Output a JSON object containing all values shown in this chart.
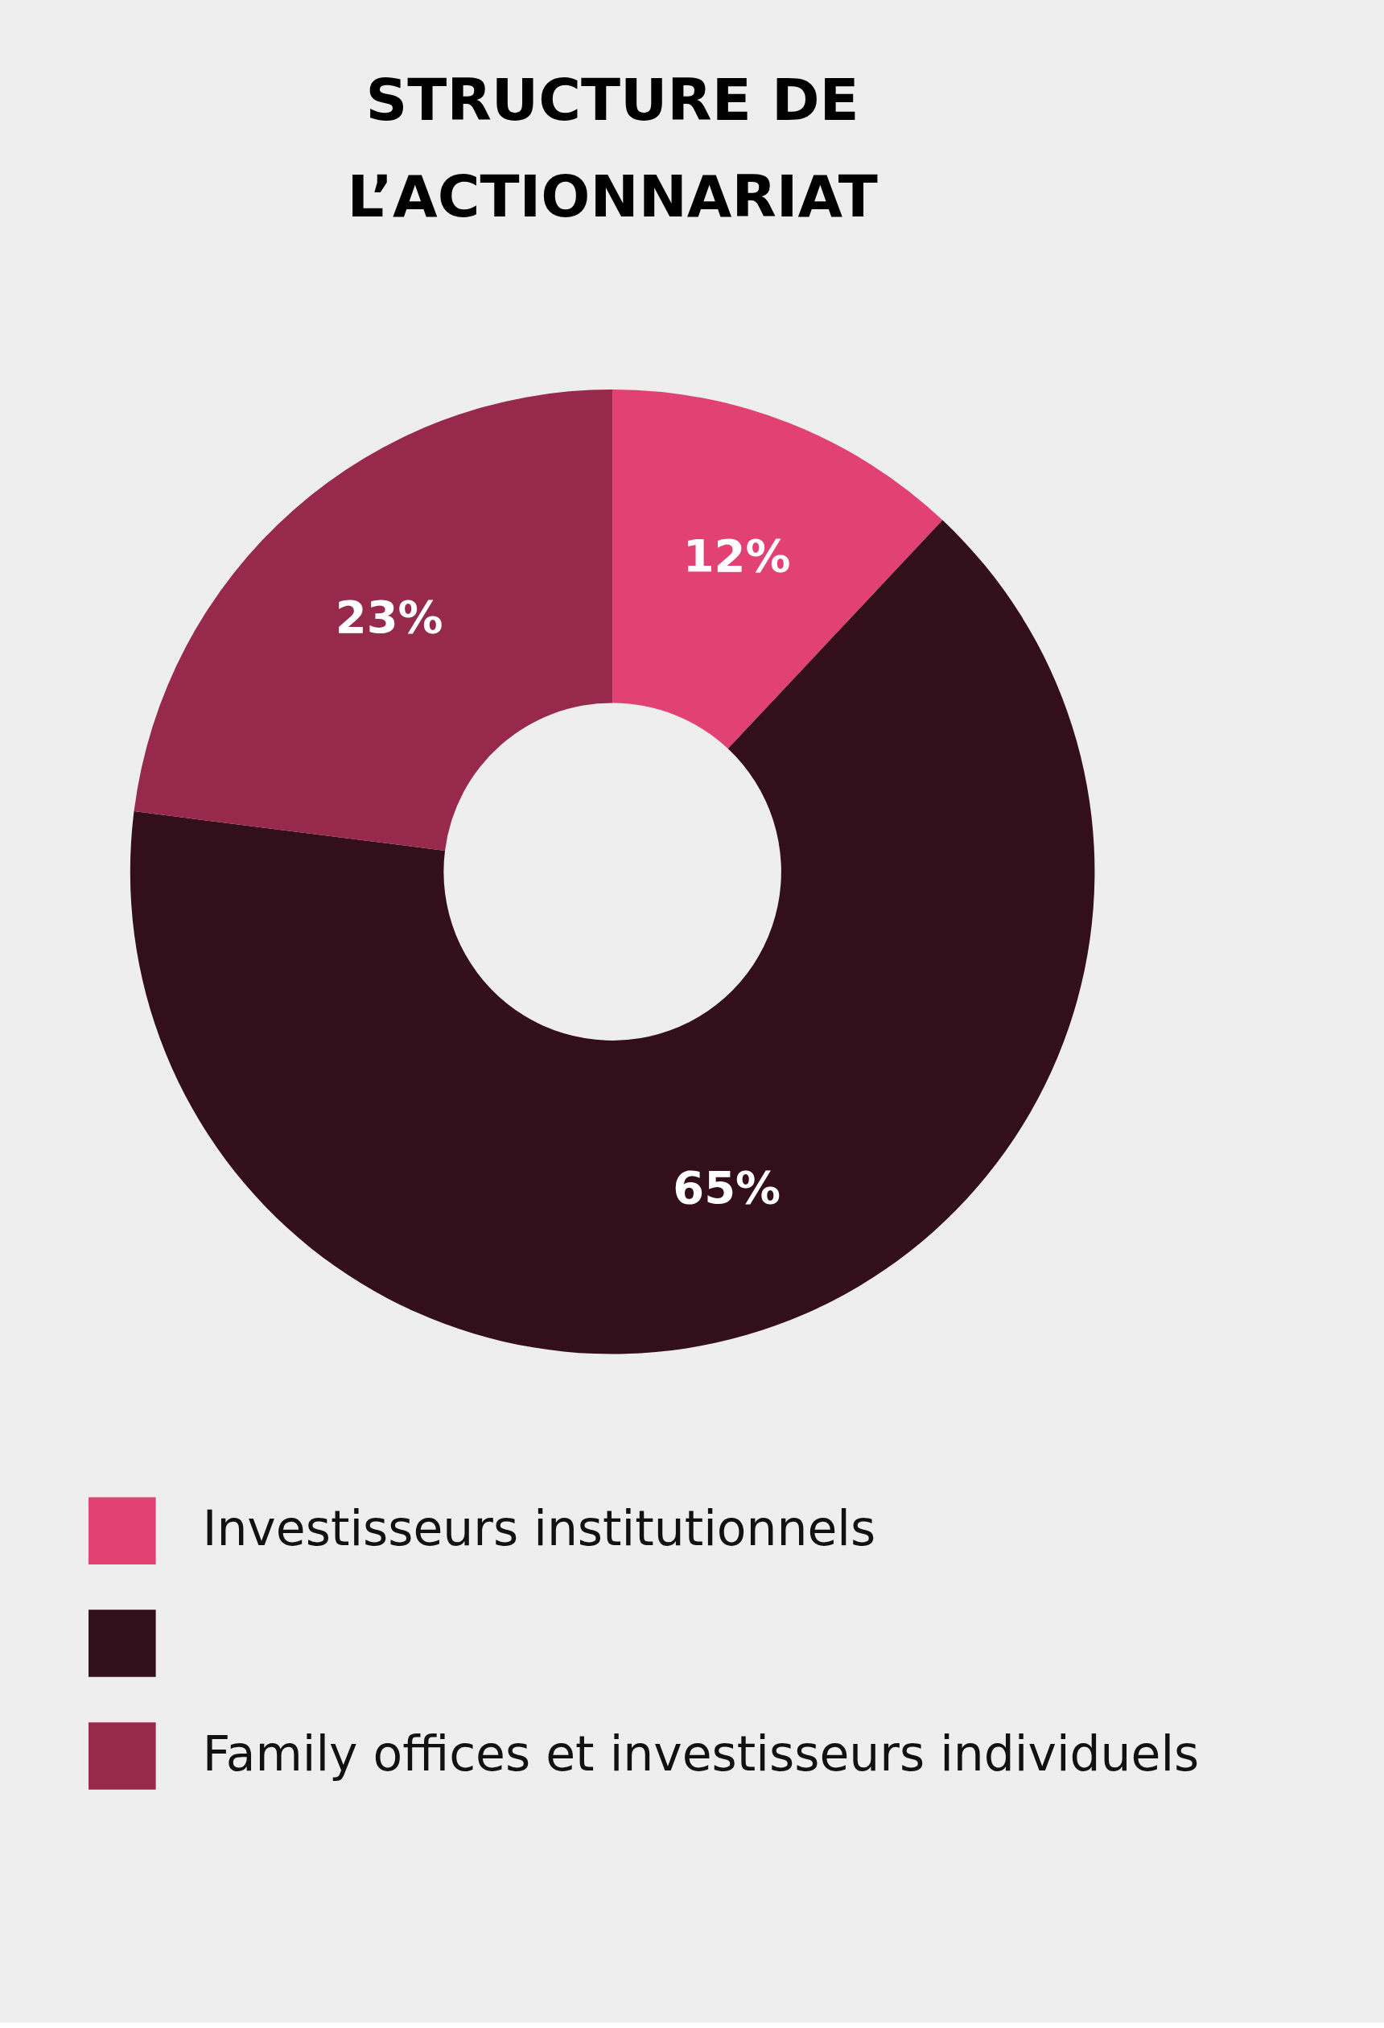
{
  "chart_data": {
    "type": "donut",
    "title": "STRUCTURE DE\nL’ACTIONNARIAT",
    "categories": [
      "Investisseurs institutionnels",
      null,
      "Family offices et investisseurs individuels"
    ],
    "values": [
      12,
      65,
      23
    ],
    "colors": [
      "#e24174",
      "#330e1b",
      "#96294c"
    ],
    "value_labels": [
      "12%",
      "65%",
      "23%"
    ],
    "legend": "bottom"
  }
}
